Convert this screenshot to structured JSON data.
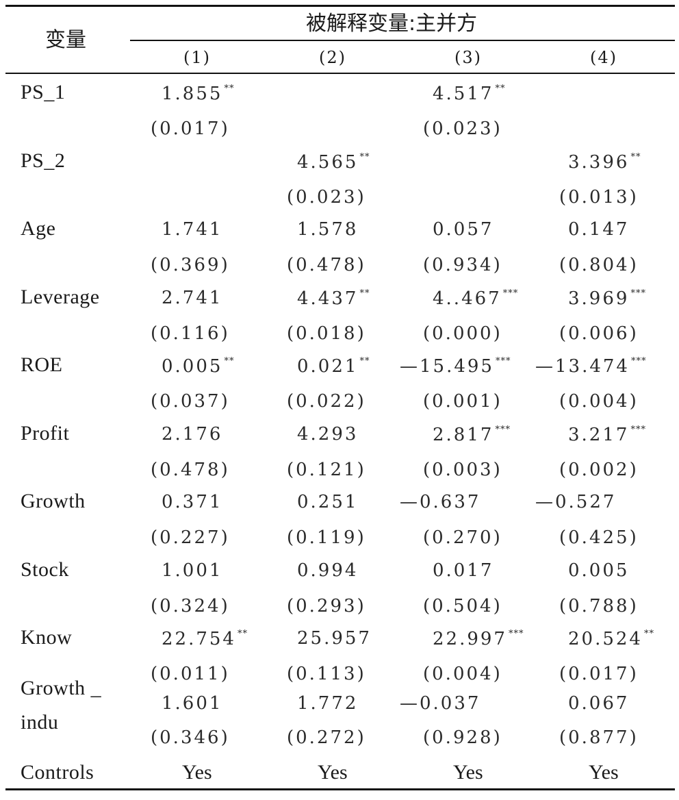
{
  "header": {
    "corner_label": "变量",
    "dv_label": "被解释变量:主并方",
    "columns": [
      "(1)",
      "(2)",
      "(3)",
      "(4)"
    ]
  },
  "rows": [
    {
      "label": "PS_1",
      "coef": [
        {
          "v": "1.855",
          "s": "**"
        },
        {
          "v": "",
          "s": ""
        },
        {
          "v": "4.517",
          "s": "**"
        },
        {
          "v": "",
          "s": ""
        }
      ],
      "p": [
        "(0.017)",
        "",
        "(0.023)",
        ""
      ]
    },
    {
      "label": "PS_2",
      "coef": [
        {
          "v": "",
          "s": ""
        },
        {
          "v": "4.565",
          "s": "**"
        },
        {
          "v": "",
          "s": ""
        },
        {
          "v": "3.396",
          "s": "**"
        }
      ],
      "p": [
        "",
        "(0.023)",
        "",
        "(0.013)"
      ]
    },
    {
      "label": "Age",
      "coef": [
        {
          "v": "1.741",
          "s": ""
        },
        {
          "v": "1.578",
          "s": ""
        },
        {
          "v": "0.057",
          "s": ""
        },
        {
          "v": "0.147",
          "s": ""
        }
      ],
      "p": [
        "(0.369)",
        "(0.478)",
        "(0.934)",
        "(0.804)"
      ]
    },
    {
      "label": "Leverage",
      "coef": [
        {
          "v": "2.741",
          "s": ""
        },
        {
          "v": "4.437",
          "s": "**"
        },
        {
          "v": "4..467",
          "s": "***"
        },
        {
          "v": "3.969",
          "s": "***"
        }
      ],
      "p": [
        "(0.116)",
        "(0.018)",
        "(0.000)",
        "(0.006)"
      ]
    },
    {
      "label": "ROE",
      "coef": [
        {
          "v": "0.005",
          "s": "**"
        },
        {
          "v": "0.021",
          "s": "**"
        },
        {
          "v": "—15.495",
          "s": "***"
        },
        {
          "v": "—13.474",
          "s": "***"
        }
      ],
      "p": [
        "(0.037)",
        "(0.022)",
        "(0.001)",
        "(0.004)"
      ]
    },
    {
      "label": "Profit",
      "coef": [
        {
          "v": "2.176",
          "s": ""
        },
        {
          "v": "4.293",
          "s": ""
        },
        {
          "v": "2.817",
          "s": "***"
        },
        {
          "v": "3.217",
          "s": "***"
        }
      ],
      "p": [
        "(0.478)",
        "(0.121)",
        "(0.003)",
        "(0.002)"
      ]
    },
    {
      "label": "Growth",
      "coef": [
        {
          "v": "0.371",
          "s": ""
        },
        {
          "v": "0.251",
          "s": ""
        },
        {
          "v": "—0.637",
          "s": ""
        },
        {
          "v": "—0.527",
          "s": ""
        }
      ],
      "p": [
        "(0.227)",
        "(0.119)",
        "(0.270)",
        "(0.425)"
      ]
    },
    {
      "label": "Stock",
      "coef": [
        {
          "v": "1.001",
          "s": ""
        },
        {
          "v": "0.994",
          "s": ""
        },
        {
          "v": "0.017",
          "s": ""
        },
        {
          "v": "0.005",
          "s": ""
        }
      ],
      "p": [
        "(0.324)",
        "(0.293)",
        "(0.504)",
        "(0.788)"
      ]
    },
    {
      "label": "Know",
      "coef": [
        {
          "v": "22.754",
          "s": "**"
        },
        {
          "v": "25.957",
          "s": ""
        },
        {
          "v": "22.997",
          "s": "***"
        },
        {
          "v": "20.524",
          "s": "**"
        }
      ],
      "p": [
        "(0.011)",
        "(0.113)",
        "(0.004)",
        "(0.017)"
      ]
    },
    {
      "label": "Growth _ indu",
      "label_lines": [
        "Growth _",
        "indu"
      ],
      "coef": [
        {
          "v": "1.601",
          "s": ""
        },
        {
          "v": "1.772",
          "s": ""
        },
        {
          "v": "—0.037",
          "s": ""
        },
        {
          "v": "0.067",
          "s": ""
        }
      ],
      "p": [
        "(0.346)",
        "(0.272)",
        "(0.928)",
        "(0.877)"
      ]
    }
  ],
  "controls": {
    "label": "Controls",
    "values": [
      "Yes",
      "Yes",
      "Yes",
      "Yes"
    ]
  }
}
